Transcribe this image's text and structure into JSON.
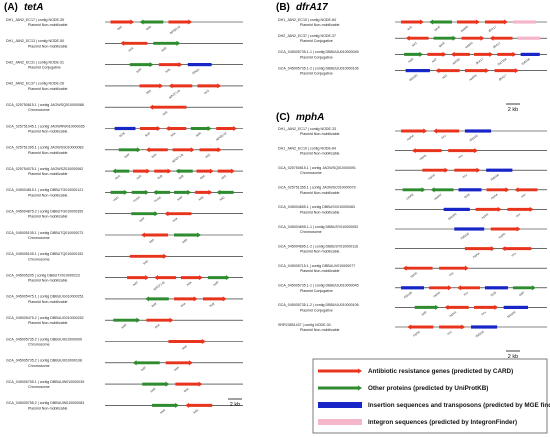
{
  "colors": {
    "arg": "#e8341c",
    "other": "#2e8b2e",
    "is": "#1826c8",
    "integron": "#f4b6c8",
    "line": "#111111"
  },
  "panels": [
    {
      "id": "A",
      "label": "(A)",
      "gene": "tetA",
      "scalebar": "2 kb",
      "tracks": [
        {
          "label": "DH1_JAN2_EC17 | contig NODE-35",
          "sub": "Plasmid Non-mobilizable",
          "genes": [
            {
              "t": "arg",
              "n": "tetA"
            },
            {
              "t": "other",
              "n": "tetR"
            },
            {
              "t": "arg",
              "n": "aph(6)-Id"
            }
          ]
        },
        {
          "label": "DH1_JAN2_EC13 | contig NODE-50",
          "sub": "Plasmid Non-mobilizable",
          "genes": [
            {
              "t": "arg",
              "n": "tetA"
            },
            {
              "t": "other",
              "n": "tetR"
            }
          ]
        },
        {
          "label": "DH2_JAN2_EC31 | contig NODE-31",
          "sub": "Plasmid Conjugative",
          "genes": [
            {
              "t": "other",
              "n": "tetR"
            },
            {
              "t": "arg",
              "n": "tetA"
            },
            {
              "t": "is",
              "n": "ISKpn"
            }
          ]
        },
        {
          "label": "DH2_JAN2_EC37 | contig NODE-26",
          "sub": "Plasmid Non-mobilizable",
          "genes": [
            {
              "t": "arg",
              "n": "tetA"
            },
            {
              "t": "arg",
              "n": "aph(3'')-Ib"
            },
            {
              "t": "arg",
              "n": "sul2"
            }
          ]
        },
        {
          "label": "GCA_025750815.1 | contig JAOWSQ010000086",
          "sub": "Chromosome",
          "genes": [
            {
              "t": "arg",
              "n": "tetA"
            }
          ]
        },
        {
          "label": "GCA_025751045.1 | contig JAOWRW010000035",
          "sub": "Plasmid Non-mobilizable",
          "genes": [
            {
              "t": "is",
              "n": "IS26"
            },
            {
              "t": "arg",
              "n": "floR"
            },
            {
              "t": "arg",
              "n": "tetA"
            },
            {
              "t": "other",
              "n": "tetR"
            },
            {
              "t": "arg",
              "n": "aph(6)-Id"
            }
          ]
        },
        {
          "label": "GCA_025751395.1 | contig JAOWSS010000083",
          "sub": "Plasmid Non-mobilizable",
          "genes": [
            {
              "t": "other",
              "n": "tetR"
            },
            {
              "t": "arg",
              "n": "tetA"
            },
            {
              "t": "arg",
              "n": "aph(3'')-Ib"
            },
            {
              "t": "arg",
              "n": "sul2"
            }
          ]
        },
        {
          "label": "GCA_025754075.1 | contig JAOWSZ010000062",
          "sub": "Plasmid Non-mobilizable",
          "genes": [
            {
              "t": "other",
              "n": "klcA"
            },
            {
              "t": "arg",
              "n": "sul2"
            },
            {
              "t": "arg",
              "n": "floR"
            },
            {
              "t": "other",
              "n": "tetR"
            },
            {
              "t": "arg",
              "n": "tetA"
            },
            {
              "t": "arg",
              "n": "strA"
            }
          ]
        },
        {
          "label": "GCA_045004815.1 | contig DBBUTG010000121",
          "sub": "Plasmid Non-mobilizable",
          "genes": [
            {
              "t": "other",
              "n": "repC"
            },
            {
              "t": "other",
              "n": "mobA"
            },
            {
              "t": "other",
              "n": "mobC"
            },
            {
              "t": "other",
              "n": "tetR"
            },
            {
              "t": "arg",
              "n": "tetA"
            },
            {
              "t": "other",
              "n": "tetC"
            }
          ]
        },
        {
          "label": "GCA_045004875.2 | contig DBBUTG010000359",
          "sub": "Plasmid Non-mobilizable",
          "genes": [
            {
              "t": "other",
              "n": "tetR"
            },
            {
              "t": "arg",
              "n": "tetA"
            }
          ]
        },
        {
          "label": "GCA_045005105.1 | contig DBBUTQ010000073",
          "sub": "Chromosome",
          "genes": [
            {
              "t": "arg",
              "n": "tetA"
            },
            {
              "t": "other",
              "n": "tetR"
            }
          ]
        },
        {
          "label": "GCA_045005105.1 | contig DBBUTQ010000152",
          "sub": "Chromosome",
          "genes": [
            {
              "t": "arg",
              "n": "tetA"
            }
          ]
        },
        {
          "label": "GCA_045005205 | contig DBBUTX010000223",
          "sub": "Plasmid Non-mobilizable",
          "genes": [
            {
              "t": "arg",
              "n": "sul2"
            },
            {
              "t": "arg",
              "n": "aph(3'')-Ib"
            },
            {
              "t": "arg",
              "n": "tetA"
            },
            {
              "t": "other",
              "n": "tetR"
            }
          ]
        },
        {
          "label": "GCA_045005475.1 | contig DBBUUG010000251",
          "sub": "Plasmid Non-mobilizable",
          "genes": [
            {
              "t": "other",
              "n": "tetR"
            },
            {
              "t": "arg",
              "n": "tetA"
            },
            {
              "t": "arg",
              "n": "floR"
            }
          ]
        },
        {
          "label": "GCA_045005475.2 | contig DBBUUG010000252",
          "sub": "Plasmid Non-mobilizable",
          "genes": [
            {
              "t": "other",
              "n": "tetR"
            },
            {
              "t": "arg",
              "n": "tetA"
            }
          ]
        },
        {
          "label": "GCA_045005735.2 | contig DBBUUI010000009",
          "sub": "Chromosome",
          "genes": [
            {
              "t": "arg",
              "n": "tetA"
            }
          ]
        },
        {
          "label": "GCA_045005735.2 | contig DBBUUI010000108",
          "sub": "Chromosome",
          "genes": [
            {
              "t": "other",
              "n": "tetR"
            },
            {
              "t": "arg",
              "n": "tetA"
            }
          ]
        },
        {
          "label": "GCA_045005755.1 | contig DBBUUW010000039",
          "sub": "Chromosome",
          "genes": [
            {
              "t": "other",
              "n": "tetR"
            },
            {
              "t": "arg",
              "n": "tetA"
            }
          ]
        },
        {
          "label": "GCA_045005755.2 | contig DBBUUW010000083",
          "sub": "Plasmid Non-mobilizable",
          "genes": [
            {
              "t": "other",
              "n": "tetR"
            },
            {
              "t": "arg",
              "n": "tetA"
            }
          ]
        }
      ]
    },
    {
      "id": "B",
      "label": "(B)",
      "gene": "dfrA17",
      "scalebar": "2 kb",
      "tracks": [
        {
          "label": "DH1_JAN2_EC10 | contig NODE-84",
          "sub": "Plasmid Non-mobilizable",
          "genes": [
            {
              "t": "arg",
              "n": "sul1"
            },
            {
              "t": "other",
              "n": "qacE"
            },
            {
              "t": "arg",
              "n": "aadA5"
            },
            {
              "t": "arg",
              "n": "dfrA17"
            },
            {
              "t": "integron",
              "n": ""
            }
          ]
        },
        {
          "label": "DH2_JAN2_EC37 | contig NODE-37",
          "sub": "Plasmid Conjugative",
          "genes": [
            {
              "t": "arg",
              "n": "sul1"
            },
            {
              "t": "other",
              "n": "qacE"
            },
            {
              "t": "arg",
              "n": "aadA5"
            },
            {
              "t": "arg",
              "n": "dfrA17"
            },
            {
              "t": "integron",
              "n": ""
            }
          ]
        },
        {
          "label": "GCA_045005735.1-1 | contig DBBUUU010000045",
          "sub": "Plasmid Conjugative",
          "genes": [
            {
              "t": "other",
              "n": "tetR"
            },
            {
              "t": "arg",
              "n": "sul2"
            },
            {
              "t": "arg",
              "n": "aph(6)"
            },
            {
              "t": "arg",
              "n": "dfrA17"
            },
            {
              "t": "arg",
              "n": "blaTEM"
            },
            {
              "t": "is",
              "n": "IS6100"
            }
          ]
        },
        {
          "label": "GCA_045005735.1-2 | contig DBBUUU010000106",
          "sub": "Plasmid Conjugative",
          "genes": [
            {
              "t": "is",
              "n": "IS6100"
            },
            {
              "t": "arg",
              "n": "sul1"
            },
            {
              "t": "arg",
              "n": "aadA5"
            },
            {
              "t": "arg",
              "n": "dfrA17"
            }
          ]
        }
      ]
    },
    {
      "id": "C",
      "label": "(C)",
      "gene": "mphA",
      "scalebar": "2 kb",
      "tracks": [
        {
          "label": "DH1_JAN2_EC17 | contig NODE-33",
          "sub": "Plasmid Non-mobilizable",
          "genes": [
            {
              "t": "arg",
              "n": "mphA"
            },
            {
              "t": "arg",
              "n": "mrx"
            },
            {
              "t": "is",
              "n": "IS6100"
            }
          ]
        },
        {
          "label": "DH1_JAN2_EC10 | contig NODE-64",
          "sub": "Plasmid Non-mobilizable",
          "genes": [
            {
              "t": "arg",
              "n": "mphA"
            },
            {
              "t": "arg",
              "n": "mrx"
            }
          ]
        },
        {
          "label": "GCA_025750815.1 | contig JAOWSQ010000091",
          "sub": "Chromosome",
          "genes": [
            {
              "t": "arg",
              "n": "mphA"
            },
            {
              "t": "arg",
              "n": "mrx"
            },
            {
              "t": "is",
              "n": "IS6100"
            }
          ]
        },
        {
          "label": "GCA_025751355.1 | contig JAOWSC010000079",
          "sub": "Plasmid Non-mobilizable",
          "genes": [
            {
              "t": "other",
              "n": "COPE"
            },
            {
              "t": "other",
              "n": "aadA2"
            },
            {
              "t": "is",
              "n": "IS26"
            },
            {
              "t": "arg",
              "n": "mphA"
            },
            {
              "t": "arg",
              "n": "mrx"
            }
          ]
        },
        {
          "label": "GCA_045004655.1 | contig DBBUSX010000083",
          "sub": "Plasmid Non-mobilizable",
          "genes": [
            {
              "t": "is",
              "n": "IS6100"
            },
            {
              "t": "arg",
              "n": "mphA"
            },
            {
              "t": "arg",
              "n": "mrx"
            }
          ]
        },
        {
          "label": "GCA_045004695.1-1 | contig DBBUSY010000052",
          "sub": "Chromosome",
          "genes": [
            {
              "t": "is",
              "n": "IS6100"
            },
            {
              "t": "arg",
              "n": "mphA"
            }
          ]
        },
        {
          "label": "GCA_045004695.1-2 | contig DBBUSY010000116",
          "sub": "Plasmid Non-mobilizable",
          "genes": [
            {
              "t": "arg",
              "n": "mphA"
            },
            {
              "t": "arg",
              "n": "mrx"
            }
          ]
        },
        {
          "label": "GCA_045005715.1 | contig DBBUUV010000077",
          "sub": "Plasmid Non-mobilizable",
          "genes": [
            {
              "t": "arg",
              "n": "mphA"
            },
            {
              "t": "arg",
              "n": "mrx"
            }
          ]
        },
        {
          "label": "GCA_045005735.1-1 | contig DBBUUU010000045",
          "sub": "Plasmid Conjugative",
          "genes": [
            {
              "t": "is",
              "n": "IS6100"
            },
            {
              "t": "arg",
              "n": "mphA"
            },
            {
              "t": "arg",
              "n": "mrx"
            },
            {
              "t": "is",
              "n": "IS26"
            },
            {
              "t": "other",
              "n": "tetR"
            }
          ]
        },
        {
          "label": "GCA_045005735.1-2 | contig DBBUUU010000106",
          "sub": "Plasmid Conjugative",
          "genes": [
            {
              "t": "other",
              "n": "tetR"
            },
            {
              "t": "arg",
              "n": "mphA"
            },
            {
              "t": "arg",
              "n": "mrx"
            },
            {
              "t": "is",
              "n": "IS6100"
            }
          ]
        },
        {
          "label": "SRR23851437 | contig NODE-30",
          "sub": "Plasmid Non-mobilizable",
          "genes": [
            {
              "t": "arg",
              "n": "mphA"
            },
            {
              "t": "arg",
              "n": "mrx"
            },
            {
              "t": "is",
              "n": "IS6100"
            }
          ]
        }
      ]
    }
  ],
  "legend": [
    {
      "t": "arg",
      "label": "Antibiotic resistance genes (predicted by CARD)"
    },
    {
      "t": "other",
      "label": "Other proteins (predicted by UniProtKB)"
    },
    {
      "t": "is",
      "label": "Insertion sequences and transposons (predicted by MGE finder)"
    },
    {
      "t": "integron",
      "label": "Integron sequences (predicted by IntegronFinder)"
    }
  ]
}
